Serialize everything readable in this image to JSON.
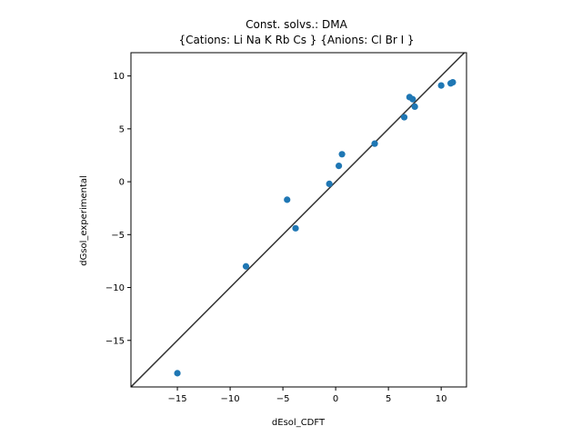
{
  "chart_data": {
    "type": "scatter",
    "title_lines": [
      "Const. solvs.: DMA",
      "{Cations: Li Na K Rb Cs } {Anions: Cl Br I }"
    ],
    "xlabel": "dEsol_CDFT",
    "ylabel": "dGsol_experimental",
    "xlim": [
      -19.4,
      12.4
    ],
    "ylim": [
      -19.4,
      12.2
    ],
    "xticks": [
      -15,
      -10,
      -5,
      0,
      5,
      10
    ],
    "yticks": [
      -15,
      -10,
      -5,
      0,
      5,
      10
    ],
    "grid": false,
    "diagonal_line": true,
    "points": [
      {
        "x": -15.0,
        "y": -18.1
      },
      {
        "x": -8.5,
        "y": -8.0
      },
      {
        "x": -4.6,
        "y": -1.7
      },
      {
        "x": -3.8,
        "y": -4.4
      },
      {
        "x": -0.6,
        "y": -0.2
      },
      {
        "x": 0.3,
        "y": 1.5
      },
      {
        "x": 0.6,
        "y": 2.6
      },
      {
        "x": 3.7,
        "y": 3.6
      },
      {
        "x": 6.5,
        "y": 6.1
      },
      {
        "x": 7.0,
        "y": 8.0
      },
      {
        "x": 7.3,
        "y": 7.8
      },
      {
        "x": 7.5,
        "y": 7.1
      },
      {
        "x": 10.0,
        "y": 9.1
      },
      {
        "x": 10.9,
        "y": 9.3
      },
      {
        "x": 11.1,
        "y": 9.4
      }
    ],
    "colors": {
      "points": "#1f77b4",
      "line": "#333333",
      "axes": "#000000"
    }
  }
}
